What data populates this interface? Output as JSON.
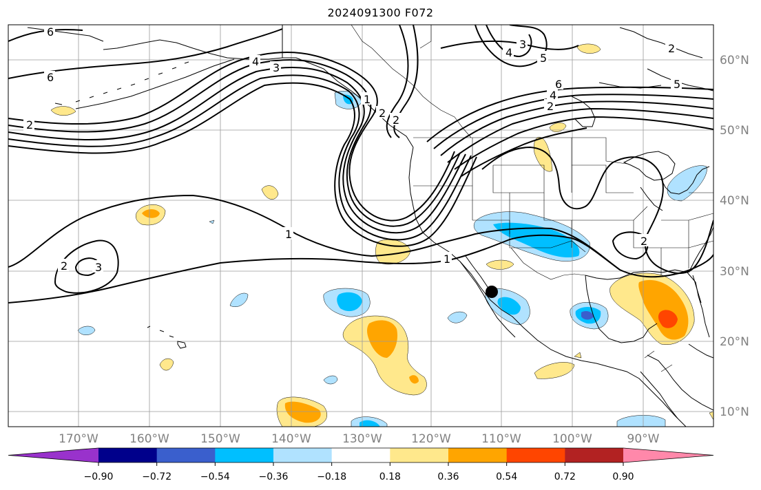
{
  "title": "2024091300 F072",
  "longitude_labels": [
    "170°W",
    "160°W",
    "150°W",
    "140°W",
    "130°W",
    "120°W",
    "110°W",
    "100°W",
    "90°W"
  ],
  "latitude_labels": [
    "60°N",
    "50°N",
    "40°N",
    "30°N",
    "20°N",
    "10°N"
  ],
  "contour_labels": [
    "6",
    "6",
    "2",
    "4",
    "3",
    "3",
    "4",
    "5",
    "6",
    "4",
    "2",
    "5",
    "2",
    "2",
    "2",
    "1",
    "1",
    "2",
    "3",
    "1",
    "2"
  ],
  "colorbar": {
    "ticks": [
      "−0.90",
      "−0.72",
      "−0.54",
      "−0.36",
      "−0.18",
      "0.18",
      "0.36",
      "0.54",
      "0.72",
      "0.90"
    ],
    "colors": [
      "#9932cc",
      "#00008b",
      "#3a5fcd",
      "#00bfff",
      "#b0e2ff",
      "#ffffff",
      "#ffe88c",
      "#ffa500",
      "#ff4500",
      "#b22222",
      "#ff88aa"
    ]
  },
  "marker": "black-dot"
}
